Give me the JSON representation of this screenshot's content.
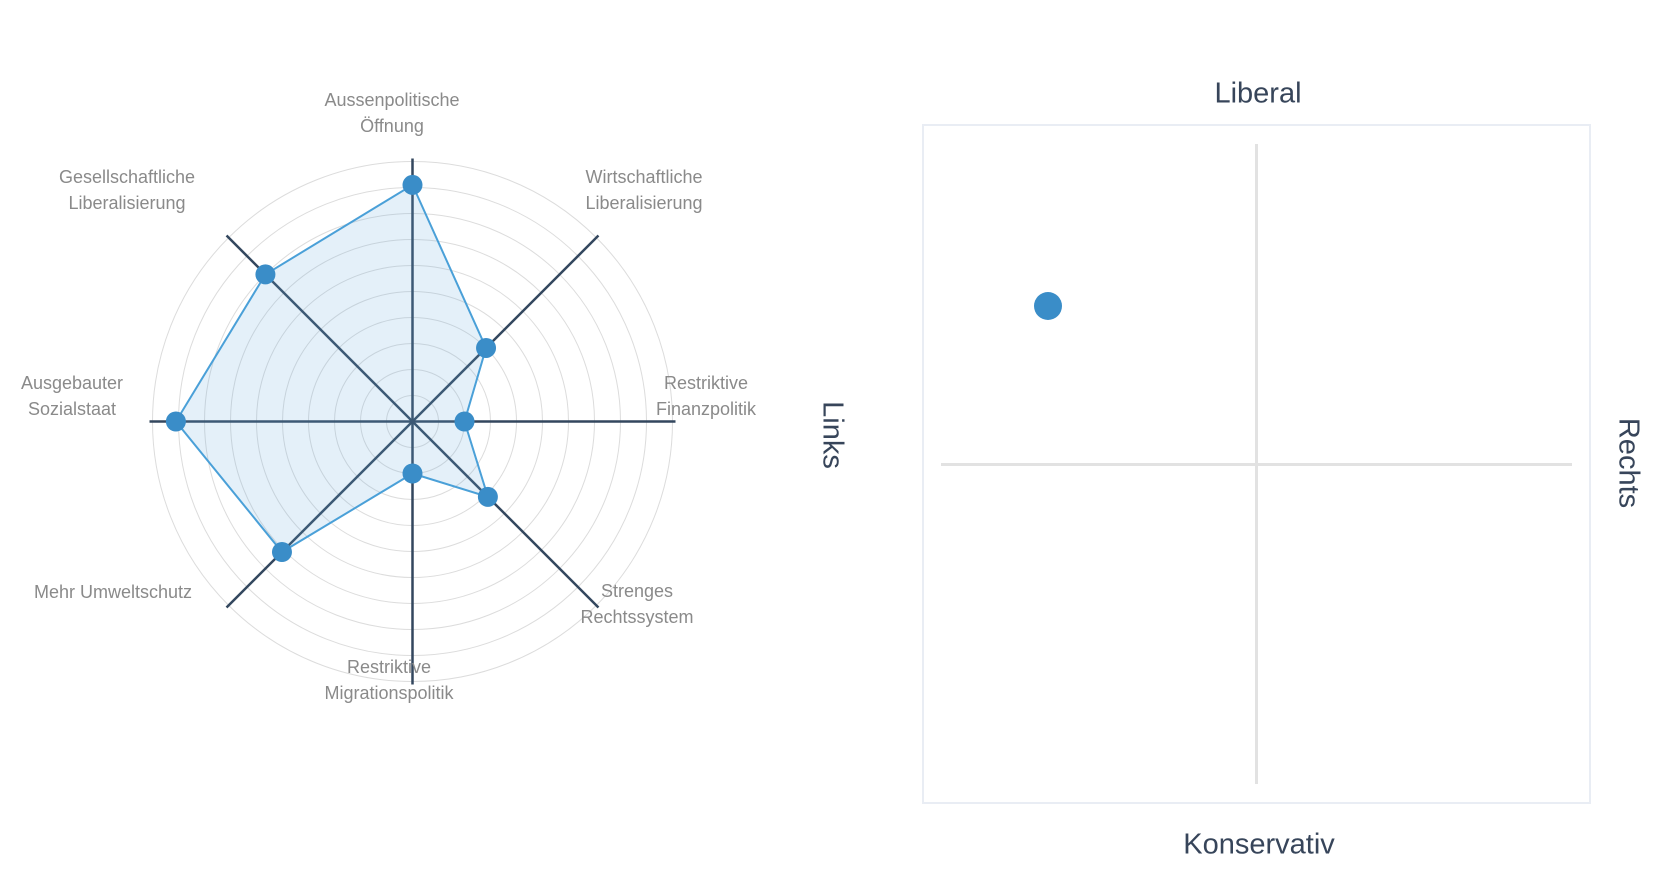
{
  "chart_data": [
    {
      "type": "radar",
      "title": "",
      "categories": [
        "Aussenpolitische Öffnung",
        "Wirtschaftliche Liberalisierung",
        "Restriktive Finanzpolitik",
        "Strenges Rechtssystem",
        "Restriktive Migrationspolitik",
        "Mehr Umweltschutz",
        "Ausgebauter Sozialstaat",
        "Gesellschaftliche Liberalisierung"
      ],
      "label_lines": [
        [
          "Aussenpolitische",
          "Öffnung"
        ],
        [
          "Wirtschaftliche",
          "Liberalisierung"
        ],
        [
          "Restriktive",
          "Finanzpolitik"
        ],
        [
          "Strenges",
          "Rechtssystem"
        ],
        [
          "Restriktive",
          "Migrationspolitik"
        ],
        [
          "Mehr Umweltschutz"
        ],
        [
          "Ausgebauter",
          "Sozialstaat"
        ],
        [
          "Gesellschaftliche",
          "Liberalisierung"
        ]
      ],
      "values": [
        91,
        40,
        20,
        41,
        20,
        71,
        91,
        80
      ],
      "rmax": 100,
      "rings": 10,
      "start": "top",
      "direction": "clockwise",
      "grid_color": "#dcdcdc",
      "spoke_color": "#33475e",
      "line_color": "#4aa0d8",
      "fill_color": "rgba(106,170,220,0.18)",
      "point_color": "#3a8dc8"
    },
    {
      "type": "scatter",
      "title": "",
      "axis_labels": {
        "top": "Liberal",
        "bottom": "Konservativ",
        "left": "Links",
        "right": "Rechts"
      },
      "xlim": [
        -1,
        1
      ],
      "ylim": [
        -1,
        1
      ],
      "grid": "crosshair",
      "points": [
        {
          "x": -0.63,
          "y": 0.47
        }
      ],
      "point_color": "#3a8dc8",
      "crosshair_color": "#e2e2e2"
    }
  ]
}
